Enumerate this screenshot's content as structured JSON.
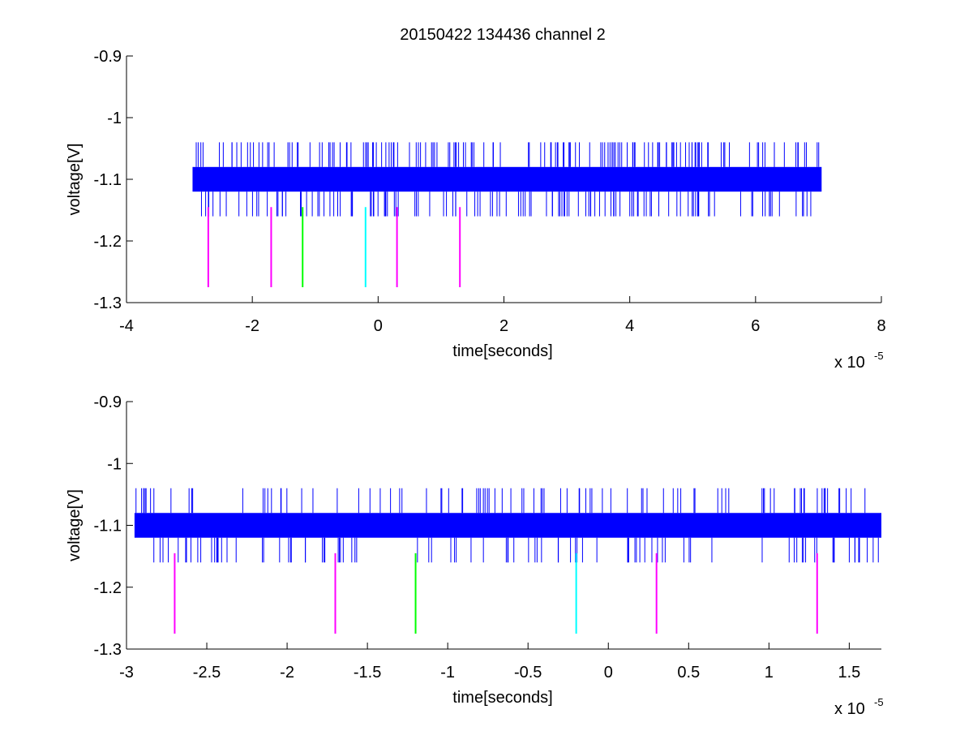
{
  "figure": {
    "title": "20150422 134436 channel 2"
  },
  "chart_data": [
    {
      "type": "line",
      "title": "20150422 134436 channel 2",
      "xlabel": "time[seconds]",
      "ylabel": "voltage[V]",
      "x_exponent_label": "x 10",
      "x_exponent": "-5",
      "xlim": [
        -4e-05,
        8e-05
      ],
      "ylim": [
        -1.3,
        -0.9
      ],
      "xticks": [
        -4e-05,
        -2e-05,
        0,
        2e-05,
        4e-05,
        6e-05,
        8e-05
      ],
      "xtick_labels": [
        "-4",
        "-2",
        "0",
        "2",
        "4",
        "6",
        "8"
      ],
      "yticks": [
        -1.3,
        -1.2,
        -1.1,
        -1.0,
        -0.9
      ],
      "ytick_labels": [
        "-1.3",
        "-1.2",
        "-1.1",
        "-1",
        "-0.9"
      ],
      "grid": false,
      "series": [
        {
          "color": "#0000ff",
          "x_range": [
            -2.95e-05,
            7.05e-05
          ],
          "band": [
            -1.12,
            -1.08
          ],
          "spike_levels": [
            -1.04,
            -1.16
          ],
          "spike_count": 280
        }
      ],
      "markers": [
        {
          "x": -2.7e-05,
          "y_range": [
            -1.275,
            -1.145
          ],
          "color": "#ff00ff"
        },
        {
          "x": -1.7e-05,
          "y_range": [
            -1.275,
            -1.145
          ],
          "color": "#ff00ff"
        },
        {
          "x": -1.2e-05,
          "y_range": [
            -1.275,
            -1.145
          ],
          "color": "#00ff00"
        },
        {
          "x": -2e-06,
          "y_range": [
            -1.275,
            -1.145
          ],
          "color": "#00ffff"
        },
        {
          "x": 3e-06,
          "y_range": [
            -1.275,
            -1.145
          ],
          "color": "#ff00ff"
        },
        {
          "x": 1.3e-05,
          "y_range": [
            -1.275,
            -1.145
          ],
          "color": "#ff00ff"
        }
      ]
    },
    {
      "type": "line",
      "title": "",
      "xlabel": "time[seconds]",
      "ylabel": "voltage[V]",
      "x_exponent_label": "x 10",
      "x_exponent": "-5",
      "xlim": [
        -3e-05,
        1.7e-05
      ],
      "ylim": [
        -1.3,
        -0.9
      ],
      "xticks": [
        -3e-05,
        -2.5e-05,
        -2e-05,
        -1.5e-05,
        -1e-05,
        -5e-06,
        0,
        5e-06,
        1e-05,
        1.5e-05
      ],
      "xtick_labels": [
        "-3",
        "-2.5",
        "-2",
        "-1.5",
        "-1",
        "-0.5",
        "0",
        "0.5",
        "1",
        "1.5"
      ],
      "yticks": [
        -1.3,
        -1.2,
        -1.1,
        -1.0,
        -0.9
      ],
      "ytick_labels": [
        "-1.3",
        "-1.2",
        "-1.1",
        "-1",
        "-0.9"
      ],
      "grid": false,
      "series": [
        {
          "color": "#0000ff",
          "x_range": [
            -2.95e-05,
            1.7e-05
          ],
          "band": [
            -1.12,
            -1.08
          ],
          "spike_levels": [
            -1.04,
            -1.16
          ],
          "spike_count": 190
        }
      ],
      "markers": [
        {
          "x": -2.7e-05,
          "y_range": [
            -1.275,
            -1.145
          ],
          "color": "#ff00ff"
        },
        {
          "x": -1.7e-05,
          "y_range": [
            -1.275,
            -1.145
          ],
          "color": "#ff00ff"
        },
        {
          "x": -1.2e-05,
          "y_range": [
            -1.275,
            -1.145
          ],
          "color": "#00ff00"
        },
        {
          "x": -2e-06,
          "y_range": [
            -1.275,
            -1.145
          ],
          "color": "#00ffff"
        },
        {
          "x": 3e-06,
          "y_range": [
            -1.275,
            -1.145
          ],
          "color": "#ff00ff"
        },
        {
          "x": 1.3e-05,
          "y_range": [
            -1.275,
            -1.145
          ],
          "color": "#ff00ff"
        }
      ]
    }
  ]
}
